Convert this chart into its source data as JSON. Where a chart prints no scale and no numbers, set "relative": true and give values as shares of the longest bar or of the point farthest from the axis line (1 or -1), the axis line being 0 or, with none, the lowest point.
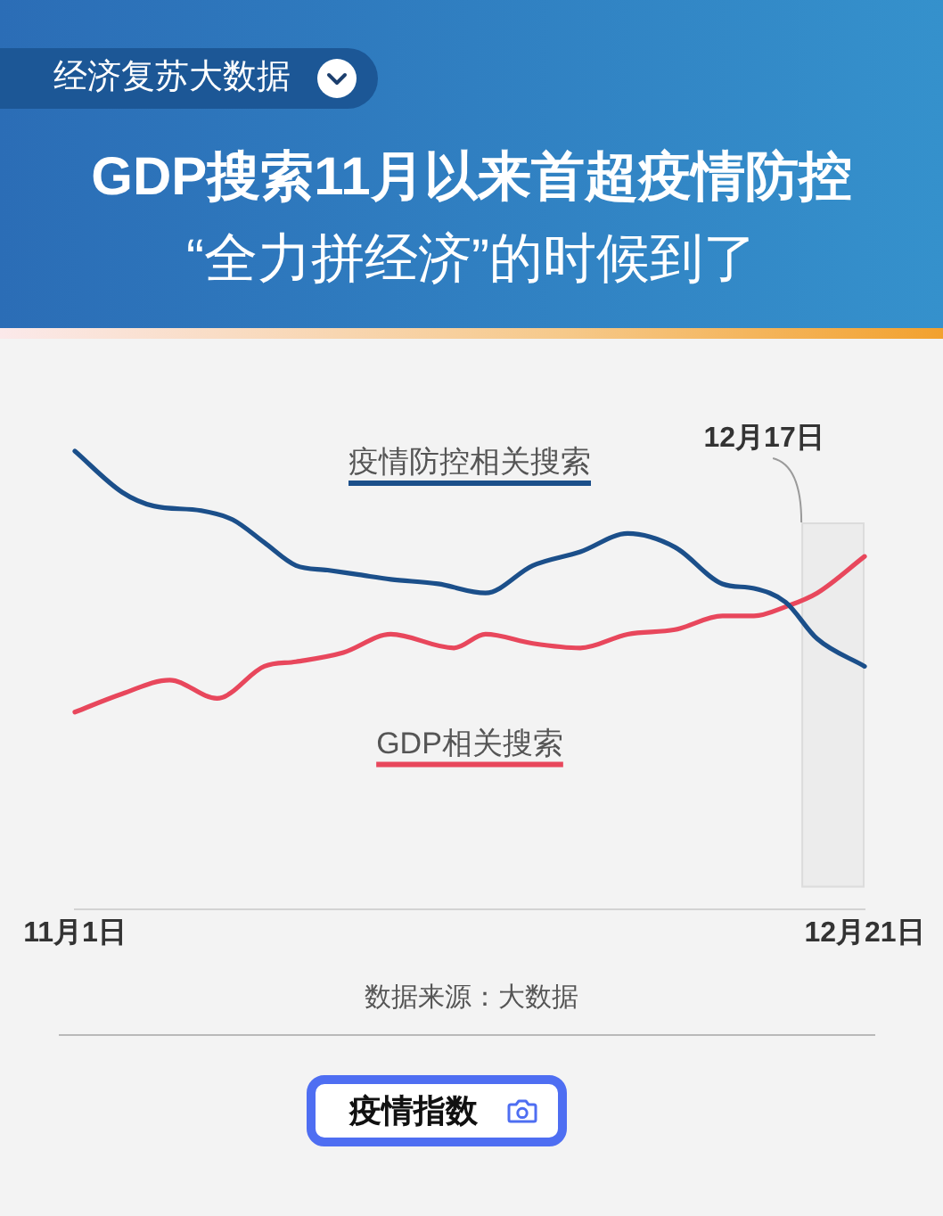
{
  "chart_data": {
    "type": "line",
    "title": "GDP搜索11月以来首超疫情防控",
    "subtitle": "“全力拼经济”的时候到了",
    "relative": true,
    "xlim": [
      "--11-01",
      "--12-21"
    ],
    "xticks": [
      {
        "value": "--11-01",
        "label": "11月1日"
      },
      {
        "value": "--12-21",
        "label": "12月21日"
      }
    ],
    "series": [
      {
        "name": "疫情防控相关搜索",
        "color": "#1b4f8a",
        "x": [
          "--11-01",
          "--11-04",
          "--11-06",
          "--11-09",
          "--11-11",
          "--11-13",
          "--11-15",
          "--11-17",
          "--11-19",
          "--11-21",
          "--11-24",
          "--11-27",
          "--11-30",
          "--12-03",
          "--12-06",
          "--12-09",
          "--12-12",
          "--12-14",
          "--12-16",
          "--12-18",
          "--12-21"
        ],
        "values": [
          1.0,
          0.91,
          0.88,
          0.87,
          0.85,
          0.8,
          0.75,
          0.74,
          0.73,
          0.72,
          0.71,
          0.69,
          0.75,
          0.78,
          0.82,
          0.79,
          0.71,
          0.7,
          0.67,
          0.59,
          0.53
        ]
      },
      {
        "name": "GDP相关搜索",
        "color": "#e8475c",
        "x": [
          "--11-01",
          "--11-04",
          "--11-07",
          "--11-10",
          "--11-13",
          "--11-15",
          "--11-18",
          "--11-21",
          "--11-25",
          "--11-27",
          "--11-30",
          "--12-03",
          "--12-06",
          "--12-09",
          "--12-12",
          "--12-14",
          "--12-16",
          "--12-18",
          "--12-21"
        ],
        "values": [
          0.43,
          0.47,
          0.5,
          0.46,
          0.53,
          0.54,
          0.56,
          0.6,
          0.57,
          0.6,
          0.58,
          0.57,
          0.6,
          0.61,
          0.64,
          0.64,
          0.66,
          0.69,
          0.77
        ]
      }
    ],
    "bands": [
      {
        "axis": "x",
        "from": "--12-17",
        "to": "--12-21",
        "label": "12月17日",
        "color": "#ececec"
      }
    ],
    "annotations": [
      "经济复苏大数据",
      "数据来源：大数据",
      "疫情指数"
    ]
  }
}
